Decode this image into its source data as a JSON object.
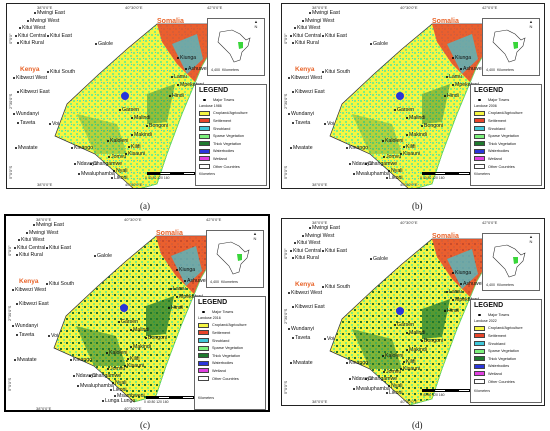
{
  "panels": [
    {
      "caption": "(a)",
      "subtitle": "Landuse 1986"
    },
    {
      "caption": "(b)",
      "subtitle": "Landuse 2006"
    },
    {
      "caption": "(c)",
      "subtitle": "Landuse 2016"
    },
    {
      "caption": "(d)",
      "subtitle": "Landuse 2022"
    }
  ],
  "map_text": {
    "lon_labels": [
      "38°0'0\"E",
      "40°30'0\"E",
      "42°0'0\"E"
    ],
    "lat_labels": [
      "0°0'0\"",
      "2°30'0\"S",
      "5°0'0\"S"
    ],
    "country_somalia": "Somalia",
    "country_kenya": "Kenya",
    "inset_scale_value": "4,400",
    "inset_scale_unit": "Kilometers",
    "north_letter": "N",
    "scale_values": "0  40  80   120   160",
    "scale_unit": "Kilometers"
  },
  "towns": [
    "Mwingi East",
    "Mwingi West",
    "Kitui West",
    "Kitui Central",
    "Kitui East",
    "Kitui Rural",
    "Galole",
    "Kitui South",
    "Kibwezi West",
    "Kibwezi East",
    "Garsen",
    "Lamu",
    "Kiunga",
    "Ashuwei",
    "Mpeketoni",
    "Hindi",
    "Wundanyi",
    "Taveta",
    "Voi",
    "Mwatate",
    "Bongoni",
    "Makindi",
    "Malindi",
    "Kaloleni",
    "Kilifi",
    "Kinango",
    "Jomvu",
    "Changamwe",
    "Kisauni",
    "Nyali",
    "Likoni",
    "Ndavaya",
    "Mwaluphamba",
    "Msambweni",
    "Lunga Lunga",
    "Ukunda",
    "Kwale",
    "Shimoni",
    "Mariakani",
    "Vanga",
    "Kilibasi",
    "Matuga",
    "Lungalunga",
    "Kamisi",
    "Mwabungo"
  ],
  "legend": {
    "title": "LEGEND",
    "major_towns": "Major Towns",
    "items": [
      {
        "label": "Cropland/Agriculture",
        "color": "#f5f542"
      },
      {
        "label": "Settlement",
        "color": "#e8442a"
      },
      {
        "label": "Shrubland",
        "color": "#3fc7d9"
      },
      {
        "label": "Sparse Vegetation",
        "color": "#7cf07c"
      },
      {
        "label": "Thick Vegetation",
        "color": "#1f7a2e"
      },
      {
        "label": "Waterbodies",
        "color": "#2a35d9"
      },
      {
        "label": "Wetland",
        "color": "#e040e0"
      },
      {
        "label": "Other Countries",
        "color": "#ffffff"
      }
    ]
  }
}
